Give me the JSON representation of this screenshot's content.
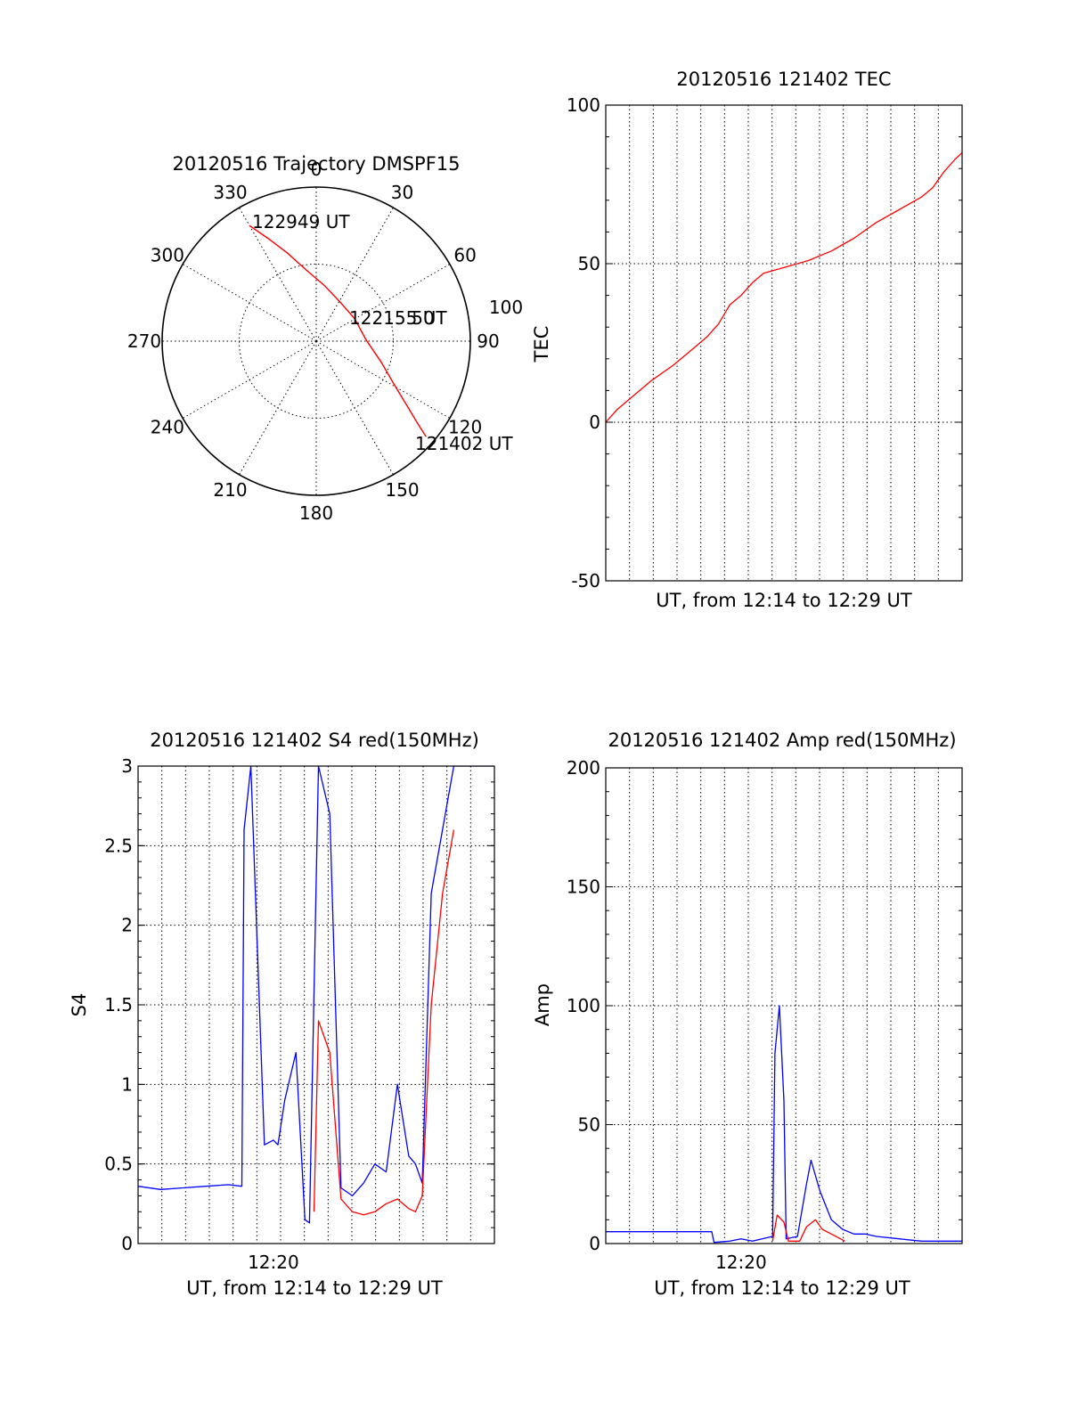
{
  "chart_data": [
    {
      "type": "scatter",
      "kind": "polar-trajectory",
      "title": "20120516 Trajectory DMSPF15",
      "azimuth_labels": [
        "0",
        "30",
        "60",
        "90",
        "120",
        "150",
        "180",
        "210",
        "240",
        "270",
        "300",
        "330"
      ],
      "radial_labels": [
        "50",
        "100"
      ],
      "annotations": [
        "122949 UT",
        "122155 UT",
        "121402 UT"
      ],
      "series": [
        {
          "color": "#ff0000",
          "points": [
            {
              "az": 330,
              "el": 12
            },
            {
              "az": 335,
              "el": 24
            },
            {
              "az": 342,
              "el": 36
            },
            {
              "az": 352,
              "el": 48
            },
            {
              "az": 8,
              "el": 57
            },
            {
              "az": 30,
              "el": 63
            },
            {
              "az": 60,
              "el": 64
            },
            {
              "az": 88,
              "el": 61
            },
            {
              "az": 108,
              "el": 50
            },
            {
              "az": 119,
              "el": 38
            },
            {
              "az": 125,
              "el": 26
            },
            {
              "az": 129,
              "el": 14
            },
            {
              "az": 131,
              "el": 5
            }
          ]
        }
      ]
    },
    {
      "type": "line",
      "title": "20120516 121402 TEC",
      "xlabel": "UT, from 12:14 to 12:29 UT",
      "ylabel": "TEC",
      "ylim": [
        -50,
        100
      ],
      "yticks": [
        "-50",
        "0",
        "50",
        "100"
      ],
      "xlim": [
        0,
        15.8
      ],
      "grid": true,
      "series": [
        {
          "color": "#ff0000",
          "x": [
            0,
            0.5,
            1.0,
            2.0,
            3.0,
            4.0,
            4.5,
            5.0,
            5.5,
            6.0,
            6.5,
            7.0,
            7.5,
            8.0,
            9.0,
            10.0,
            11.0,
            12.0,
            13.0,
            14.0,
            14.5,
            15.0,
            15.5,
            15.8
          ],
          "y": [
            0,
            4,
            7,
            13,
            18,
            24,
            27,
            31,
            37,
            40,
            44,
            47,
            48,
            49,
            51,
            54,
            58,
            63,
            67,
            71,
            74,
            79,
            83,
            85
          ]
        }
      ]
    },
    {
      "type": "line",
      "title": "20120516 121402 S4 red(150MHz)",
      "xlabel": "UT, from 12:14 to 12:29 UT",
      "ylabel": "S4",
      "ylim": [
        0,
        3
      ],
      "yticks": [
        "0",
        "0.5",
        "1",
        "1.5",
        "2",
        "2.5",
        "3"
      ],
      "xlim": [
        0,
        15.8
      ],
      "xticks": [
        {
          "x": 6.0,
          "label": "12:20"
        }
      ],
      "grid": true,
      "series": [
        {
          "color": "#0000ff",
          "x": [
            0,
            1,
            2,
            3,
            4,
            4.6,
            4.7,
            5.0,
            5.6,
            6.0,
            6.2,
            6.5,
            7.0,
            7.4,
            7.6,
            8.0,
            8.5,
            9.0,
            9.5,
            10.0,
            10.5,
            11.0,
            11.5,
            12.0,
            12.3,
            12.6,
            13.0,
            14.0,
            15.0,
            15.8
          ],
          "y": [
            0.36,
            0.34,
            0.35,
            0.36,
            0.37,
            0.36,
            2.6,
            3.0,
            0.62,
            0.65,
            0.62,
            0.9,
            1.2,
            0.15,
            0.13,
            3.0,
            2.7,
            0.35,
            0.3,
            0.38,
            0.5,
            0.45,
            1.0,
            0.55,
            0.5,
            0.38,
            2.2,
            3.0,
            3.0,
            3.0
          ]
        },
        {
          "color": "#ff0000",
          "x": [
            7.8,
            8.0,
            8.5,
            9.0,
            9.5,
            10.0,
            10.5,
            11.0,
            11.5,
            12.0,
            12.3,
            12.6,
            13.0,
            13.5,
            14.0
          ],
          "y": [
            0.2,
            1.4,
            1.2,
            0.28,
            0.2,
            0.18,
            0.2,
            0.25,
            0.28,
            0.22,
            0.2,
            0.3,
            1.5,
            2.2,
            2.6
          ]
        }
      ]
    },
    {
      "type": "line",
      "title": "20120516 121402 Amp red(150MHz)",
      "xlabel": "UT, from 12:14 to 12:29 UT",
      "ylabel": "Amp",
      "ylim": [
        0,
        200
      ],
      "yticks": [
        "0",
        "50",
        "100",
        "150",
        "200"
      ],
      "xlim": [
        0,
        15.8
      ],
      "xticks": [
        {
          "x": 6.0,
          "label": "12:20"
        }
      ],
      "grid": true,
      "series": [
        {
          "color": "#0000ff",
          "x": [
            0,
            1,
            2,
            3,
            4,
            4.7,
            4.8,
            5.5,
            6.0,
            6.5,
            7.4,
            7.5,
            7.7,
            7.9,
            8.0,
            8.5,
            8.9,
            9.1,
            9.5,
            10.0,
            10.5,
            11.0,
            11.5,
            12.0,
            13.0,
            14.0,
            15.0,
            15.8
          ],
          "y": [
            5,
            5,
            5,
            5,
            5,
            5,
            0.5,
            1,
            2,
            1,
            3,
            80,
            100,
            60,
            2,
            3,
            25,
            35,
            22,
            10,
            6,
            4,
            4,
            3,
            2,
            1,
            1,
            1
          ]
        },
        {
          "color": "#ff0000",
          "x": [
            7.4,
            7.6,
            7.9,
            8.1,
            8.6,
            8.9,
            9.3,
            9.6,
            10.0,
            10.6
          ],
          "y": [
            1,
            12,
            9,
            1,
            1,
            7,
            10,
            6,
            4,
            1
          ]
        }
      ]
    }
  ]
}
